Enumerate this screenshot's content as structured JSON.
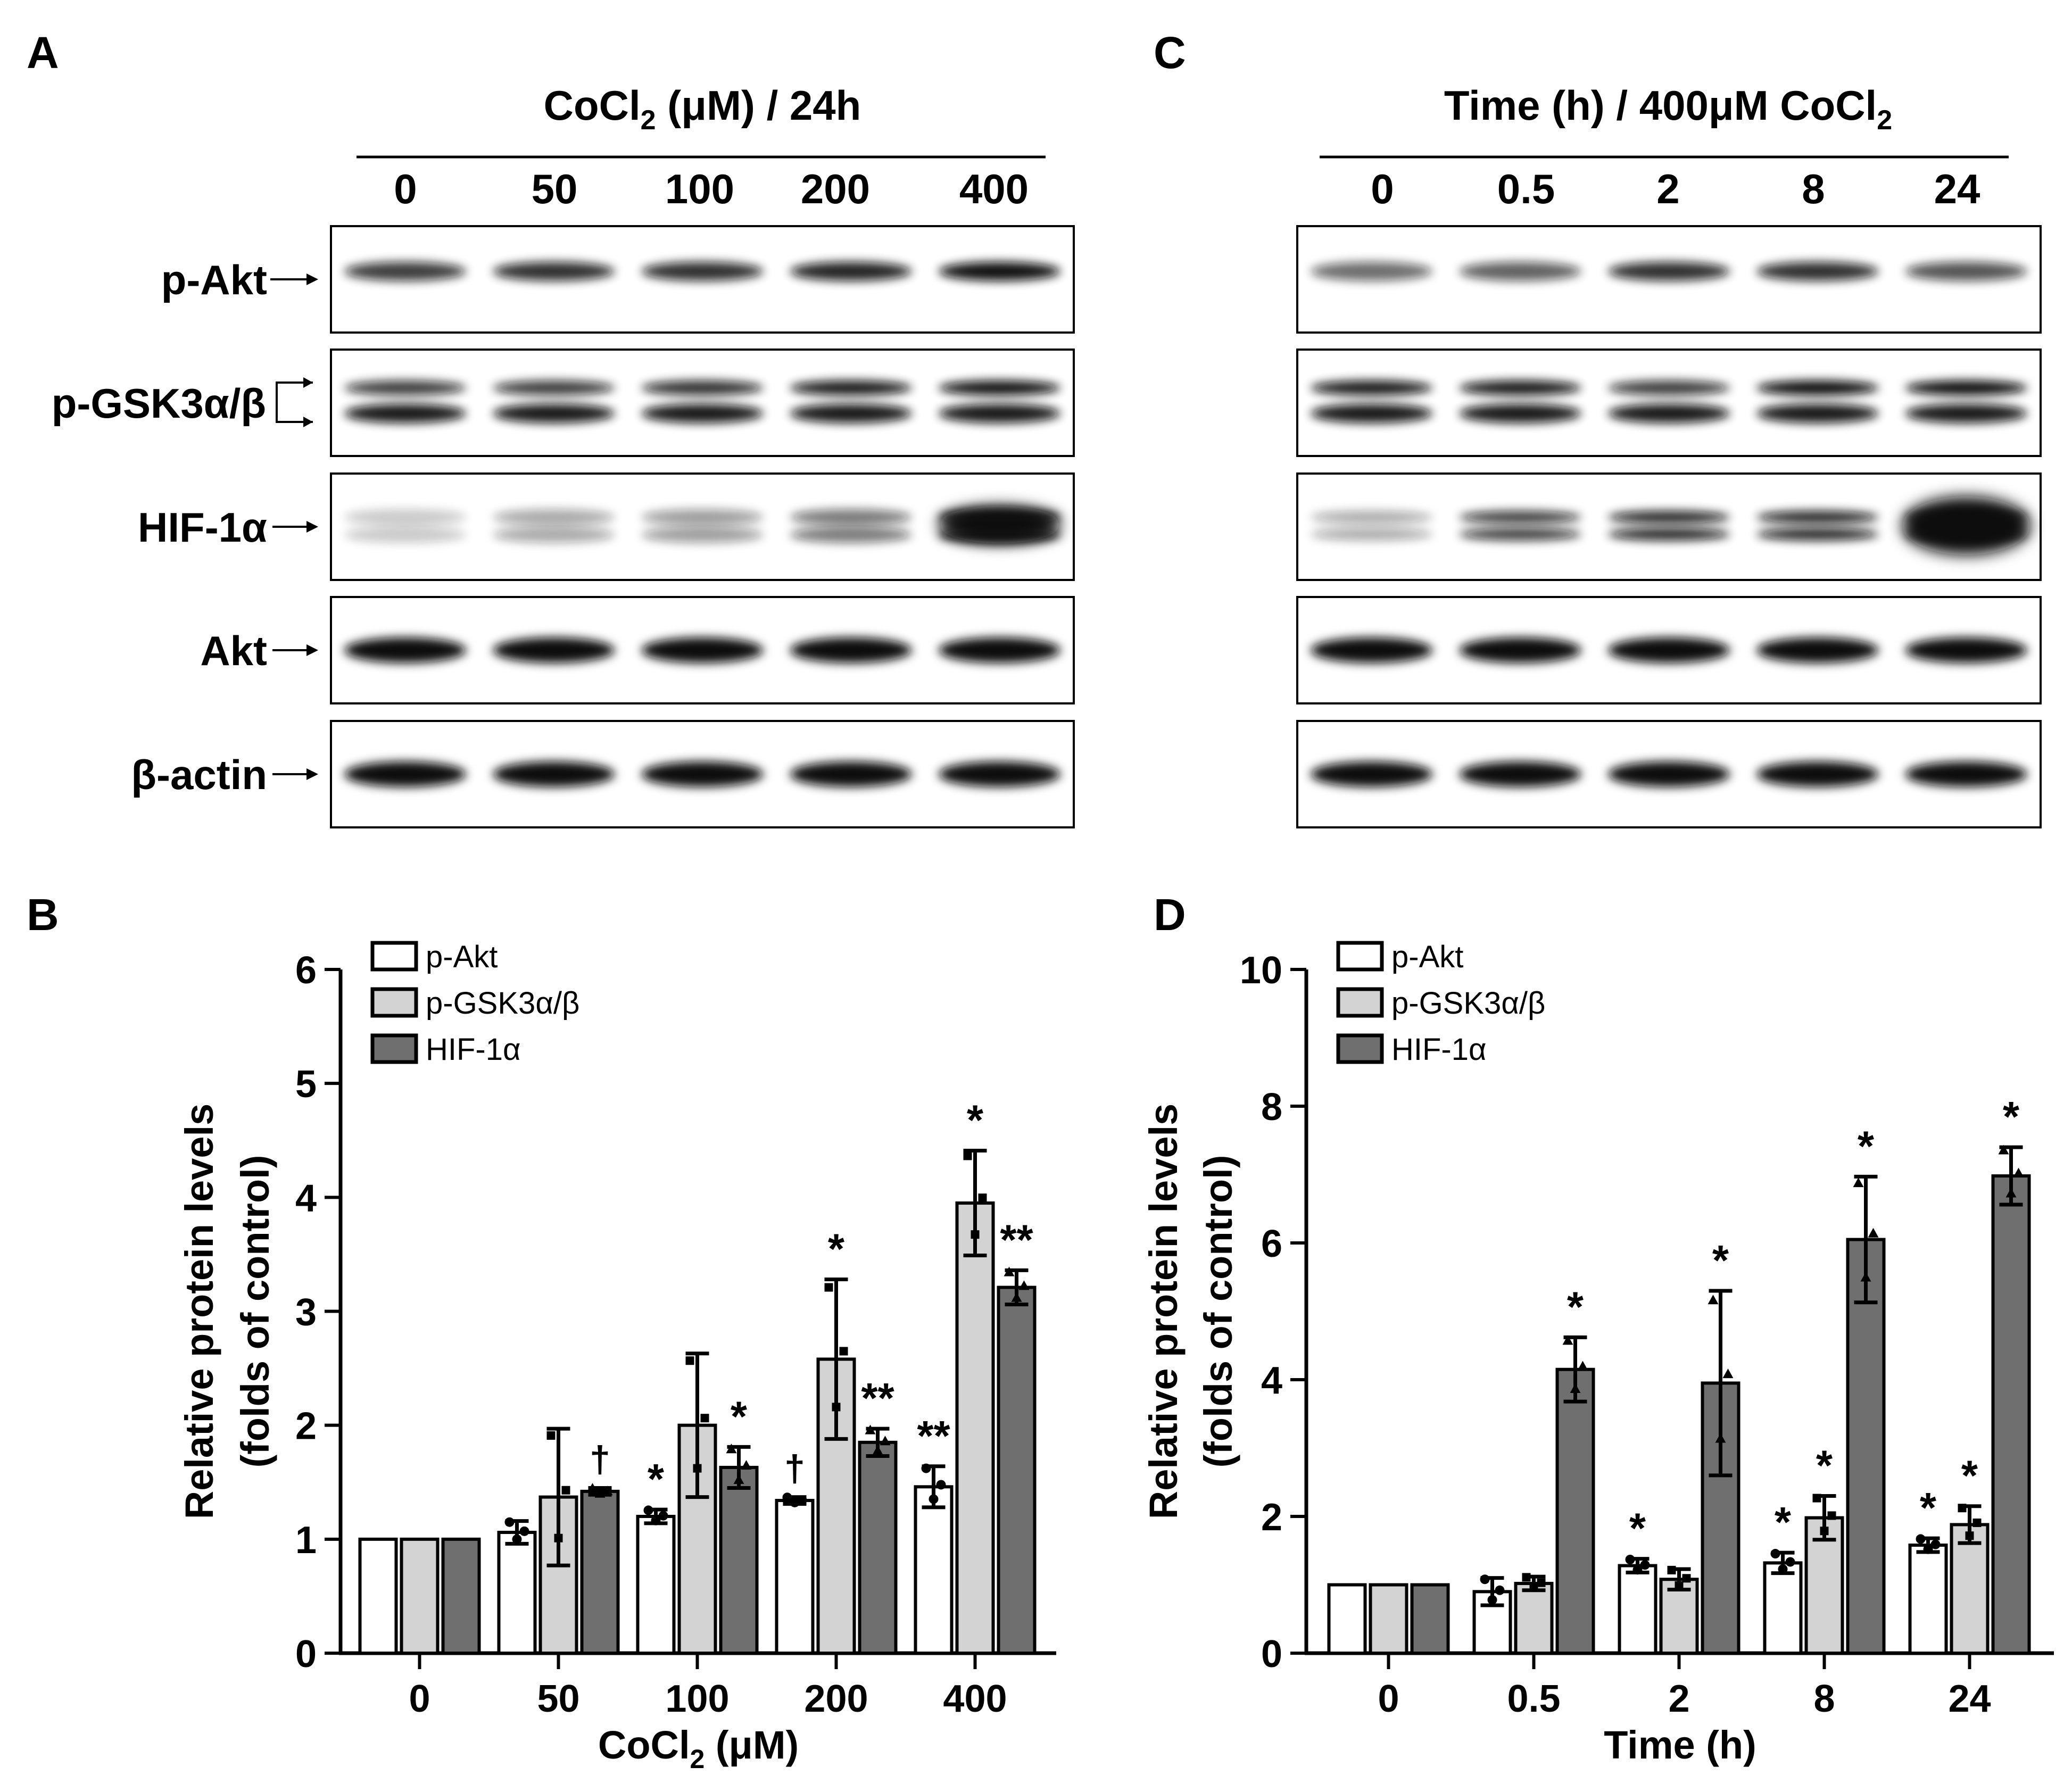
{
  "panels": {
    "a": {
      "letter": "A",
      "header": "CoCl",
      "header_sub": "2",
      "header_tail": " (μM) / 24h",
      "lanes": [
        "0",
        "50",
        "100",
        "200",
        "400"
      ],
      "proteins": [
        "p-Akt",
        "p-GSK3α/β",
        "HIF-1α",
        "Akt",
        "β-actin"
      ]
    },
    "b": {
      "letter": "B"
    },
    "c": {
      "letter": "C",
      "header": "Time (h) / 400μM CoCl",
      "header_sub": "2",
      "lanes": [
        "0",
        "0.5",
        "2",
        "8",
        "24"
      ]
    },
    "d": {
      "letter": "D"
    }
  },
  "chart_data": [
    {
      "type": "bar",
      "panel": "B",
      "categories": [
        "0",
        "50",
        "100",
        "200",
        "400"
      ],
      "xlabel": "CoCl",
      "xlabel_sub": "2",
      "xlabel_tail": " (μM)",
      "ylabel_line1": "Relative protein levels",
      "ylabel_line2": "(folds of control)",
      "ylim": [
        0,
        6
      ],
      "yticks": [
        0,
        1,
        2,
        3,
        4,
        5,
        6
      ],
      "series": [
        {
          "name": "p-Akt",
          "color": "#ffffff",
          "values": [
            1.0,
            1.06,
            1.2,
            1.34,
            1.46
          ],
          "errors": [
            0,
            0.1,
            0.06,
            0.03,
            0.18
          ],
          "marks": [
            "",
            "",
            "*",
            "†",
            "**"
          ]
        },
        {
          "name": "p-GSK3α/β",
          "color": "#d3d3d3",
          "values": [
            1.0,
            1.37,
            2.0,
            2.58,
            3.95
          ],
          "errors": [
            0,
            0.6,
            0.63,
            0.7,
            0.46
          ],
          "marks": [
            "",
            "",
            "",
            "*",
            "*"
          ]
        },
        {
          "name": "HIF-1α",
          "color": "#6f6f6f",
          "values": [
            1.0,
            1.42,
            1.63,
            1.85,
            3.21
          ],
          "errors": [
            0,
            0.03,
            0.18,
            0.12,
            0.15
          ],
          "marks": [
            "",
            "†",
            "*",
            "**",
            "**"
          ]
        }
      ]
    },
    {
      "type": "bar",
      "panel": "D",
      "categories": [
        "0",
        "0.5",
        "2",
        "8",
        "24"
      ],
      "xlabel": "Time (h)",
      "ylabel_line1": "Relative protein levels",
      "ylabel_line2": "(folds of control)",
      "ylim": [
        0,
        10
      ],
      "yticks": [
        0,
        2,
        4,
        6,
        8,
        10
      ],
      "series": [
        {
          "name": "p-Akt",
          "color": "#ffffff",
          "values": [
            1.0,
            0.9,
            1.28,
            1.32,
            1.58
          ],
          "errors": [
            0,
            0.2,
            0.1,
            0.15,
            0.1
          ],
          "marks": [
            "",
            "",
            "*",
            "*",
            "*"
          ]
        },
        {
          "name": "p-GSK3α/β",
          "color": "#d3d3d3",
          "values": [
            1.0,
            1.02,
            1.08,
            1.98,
            1.88
          ],
          "errors": [
            0,
            0.1,
            0.15,
            0.32,
            0.27
          ],
          "marks": [
            "",
            "",
            "",
            "*",
            "*"
          ]
        },
        {
          "name": "HIF-1α",
          "color": "#6f6f6f",
          "values": [
            1.0,
            4.15,
            3.95,
            6.05,
            6.98
          ],
          "errors": [
            0,
            0.47,
            1.35,
            0.92,
            0.42
          ],
          "marks": [
            "",
            "*",
            "*",
            "*",
            "*"
          ]
        }
      ]
    }
  ]
}
